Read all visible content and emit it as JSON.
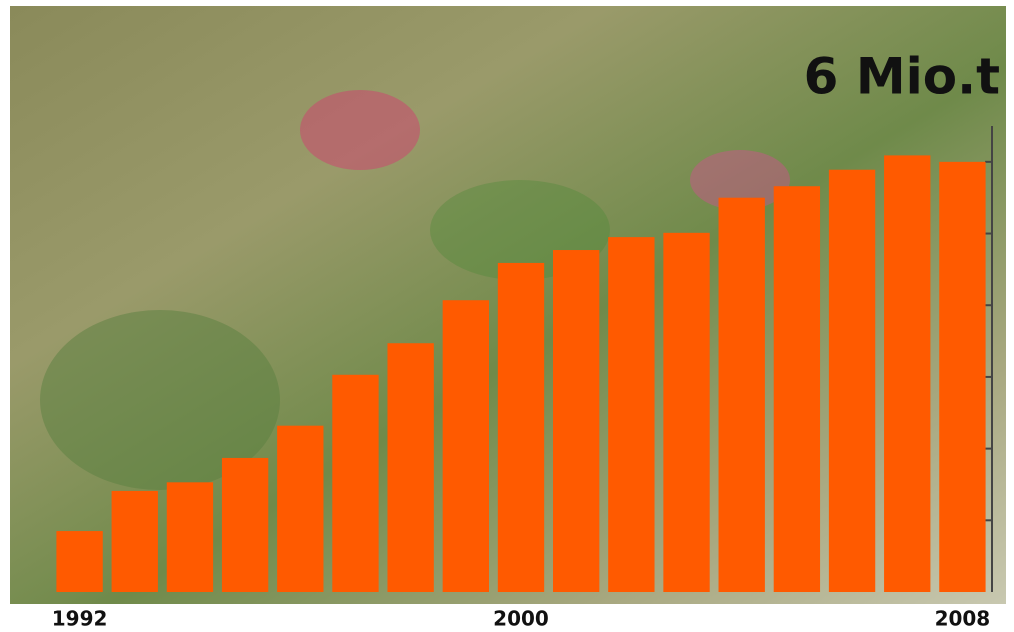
{
  "chart_data": {
    "type": "bar",
    "title": "6 Mio.t",
    "categories": [
      "1992",
      null,
      null,
      null,
      null,
      null,
      null,
      null,
      "2000",
      null,
      null,
      null,
      null,
      null,
      null,
      null,
      "2008"
    ],
    "values": [
      0.85,
      1.41,
      1.53,
      1.87,
      2.32,
      3.03,
      3.47,
      4.07,
      4.59,
      4.77,
      4.95,
      5.01,
      5.5,
      5.66,
      5.89,
      6.09,
      6.0
    ],
    "color": "#ff5a00",
    "ylim": [
      0,
      6.5
    ],
    "yticks": [
      1,
      2,
      3,
      4,
      5,
      6
    ]
  }
}
